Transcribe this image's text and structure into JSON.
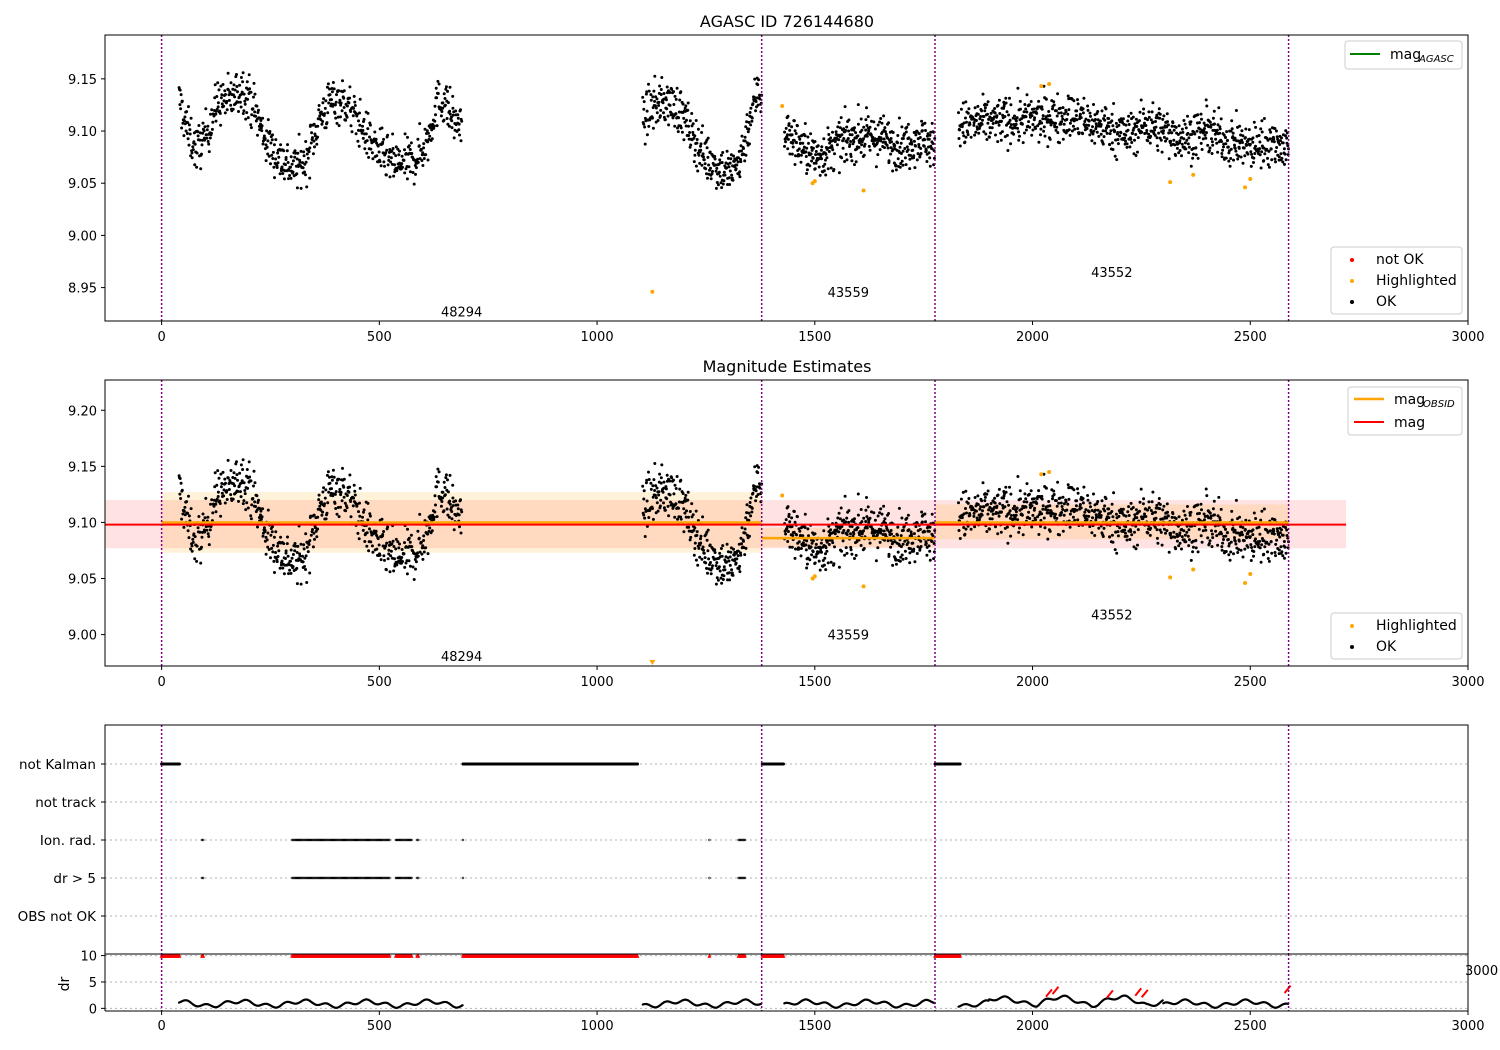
{
  "figure": {
    "panel1_title": "AGASC ID 726144680",
    "panel2_title": "Magnitude Estimates"
  },
  "chart_data": [
    {
      "type": "scatter",
      "title": "AGASC ID 726144680",
      "xlim": [
        -130,
        3000
      ],
      "ylim": [
        8.918,
        9.192
      ],
      "x_ticks": [
        0,
        500,
        1000,
        1500,
        2000,
        2500,
        3000
      ],
      "y_ticks": [
        8.95,
        9.0,
        9.05,
        9.1,
        9.15
      ],
      "y_tick_labels": [
        "8.95",
        "9.00",
        "9.05",
        "9.10",
        "9.15"
      ],
      "obsid_boundaries": [
        0,
        1378,
        1776,
        2588
      ],
      "obsid_labels": [
        {
          "text": "48294",
          "x": 689,
          "y": 8.927
        },
        {
          "text": "43559",
          "x": 1577,
          "y": 8.946
        },
        {
          "text": "43552",
          "x": 2182,
          "y": 8.965
        }
      ],
      "legend_lines": [
        {
          "label_main": "mag",
          "label_sub": "AGASC",
          "color": "#008000"
        }
      ],
      "legend_points": [
        {
          "label": "not OK",
          "color": "#ff0000"
        },
        {
          "label": "Highlighted",
          "color": "#ffa500"
        },
        {
          "label": "OK",
          "color": "#000000"
        }
      ],
      "highlighted": [
        [
          1127,
          8.946
        ],
        [
          1425,
          9.124
        ],
        [
          1495,
          9.05
        ],
        [
          1500,
          9.052
        ],
        [
          1612,
          9.043
        ],
        [
          2020,
          9.143
        ],
        [
          2038,
          9.145
        ],
        [
          2316,
          9.051
        ],
        [
          2369,
          9.058
        ],
        [
          2488,
          9.046
        ],
        [
          2500,
          9.054
        ]
      ],
      "ok_segments": [
        {
          "x0": 40,
          "x1": 690,
          "points_per": 2.2,
          "waypoints": [
            [
              40,
              9.13
            ],
            [
              60,
              9.1
            ],
            [
              80,
              9.082
            ],
            [
              100,
              9.095
            ],
            [
              130,
              9.128
            ],
            [
              160,
              9.13
            ],
            [
              185,
              9.142
            ],
            [
              210,
              9.125
            ],
            [
              240,
              9.09
            ],
            [
              270,
              9.075
            ],
            [
              300,
              9.065
            ],
            [
              330,
              9.07
            ],
            [
              360,
              9.11
            ],
            [
              390,
              9.13
            ],
            [
              420,
              9.128
            ],
            [
              450,
              9.11
            ],
            [
              480,
              9.09
            ],
            [
              510,
              9.075
            ],
            [
              540,
              9.068
            ],
            [
              580,
              9.072
            ],
            [
              610,
              9.09
            ],
            [
              630,
              9.125
            ],
            [
              650,
              9.13
            ],
            [
              670,
              9.11
            ],
            [
              690,
              9.105
            ]
          ]
        },
        {
          "x0": 1105,
          "x1": 1378,
          "points_per": 2.4,
          "waypoints": [
            [
              1105,
              9.11
            ],
            [
              1130,
              9.125
            ],
            [
              1160,
              9.128
            ],
            [
              1190,
              9.12
            ],
            [
              1220,
              9.095
            ],
            [
              1250,
              9.075
            ],
            [
              1280,
              9.065
            ],
            [
              1310,
              9.06
            ],
            [
              1330,
              9.075
            ],
            [
              1350,
              9.11
            ],
            [
              1370,
              9.14
            ],
            [
              1378,
              9.13
            ]
          ]
        },
        {
          "x0": 1430,
          "x1": 1776,
          "points_per": 2.6,
          "waypoints": [
            [
              1430,
              9.1
            ],
            [
              1470,
              9.085
            ],
            [
              1500,
              9.075
            ],
            [
              1530,
              9.08
            ],
            [
              1560,
              9.09
            ],
            [
              1600,
              9.095
            ],
            [
              1650,
              9.093
            ],
            [
              1700,
              9.085
            ],
            [
              1740,
              9.093
            ],
            [
              1776,
              9.085
            ]
          ]
        },
        {
          "x0": 1830,
          "x1": 2588,
          "points_per": 2.4,
          "waypoints": [
            [
              1830,
              9.105
            ],
            [
              1880,
              9.108
            ],
            [
              1930,
              9.11
            ],
            [
              1980,
              9.11
            ],
            [
              2030,
              9.112
            ],
            [
              2080,
              9.115
            ],
            [
              2130,
              9.108
            ],
            [
              2180,
              9.103
            ],
            [
              2220,
              9.095
            ],
            [
              2260,
              9.108
            ],
            [
              2300,
              9.1
            ],
            [
              2350,
              9.093
            ],
            [
              2400,
              9.1
            ],
            [
              2450,
              9.09
            ],
            [
              2500,
              9.085
            ],
            [
              2550,
              9.09
            ],
            [
              2588,
              9.083
            ]
          ]
        }
      ]
    },
    {
      "type": "scatter",
      "title": "Magnitude Estimates",
      "xlim": [
        -130,
        3000
      ],
      "ylim": [
        8.972,
        9.227
      ],
      "x_ticks": [
        0,
        500,
        1000,
        1500,
        2000,
        2500,
        3000
      ],
      "y_ticks": [
        9.0,
        9.05,
        9.1,
        9.15,
        9.2
      ],
      "y_tick_labels": [
        "9.00",
        "9.05",
        "9.10",
        "9.15",
        "9.20"
      ],
      "obsid_boundaries": [
        0,
        1378,
        1776,
        2588
      ],
      "obsid_labels": [
        {
          "text": "48294",
          "x": 689,
          "y": 8.981
        },
        {
          "text": "43559",
          "x": 1577,
          "y": 9.0
        },
        {
          "text": "43552",
          "x": 2182,
          "y": 9.018
        }
      ],
      "mag": {
        "value": 9.098,
        "band": [
          9.077,
          9.12
        ],
        "x_range": [
          -130,
          2720
        ],
        "color": "#ff0000"
      },
      "mag_obsid": [
        {
          "x0": 0,
          "x1": 1378,
          "value": 9.1,
          "band": [
            9.073,
            9.127
          ]
        },
        {
          "x0": 1378,
          "x1": 1776,
          "value": 9.086,
          "band": [
            9.078,
            9.095
          ]
        },
        {
          "x0": 1776,
          "x1": 2588,
          "value": 9.1,
          "band": [
            9.085,
            9.116
          ]
        }
      ],
      "legend_lines": [
        {
          "label_main": "mag",
          "label_sub": "OBSID",
          "color": "#ffa500"
        },
        {
          "label_main": "mag",
          "label_sub": "",
          "color": "#ff0000"
        }
      ],
      "legend_points": [
        {
          "label": "Highlighted",
          "color": "#ffa500"
        },
        {
          "label": "OK",
          "color": "#000000"
        }
      ]
    },
    {
      "type": "scatter",
      "xlim": [
        -130,
        3000
      ],
      "flag_rows": [
        "not Kalman",
        "not track",
        "Ion. rad.",
        "dr > 5",
        "OBS not OK"
      ],
      "flag_segments": {
        "not Kalman": [
          [
            0,
            42
          ],
          [
            692,
            1095
          ],
          [
            1380,
            1430
          ],
          [
            1776,
            1835
          ]
        ],
        "not track": [],
        "Ion. rad.": [
          [
            93,
            96
          ],
          [
            300,
            525
          ],
          [
            538,
            575
          ],
          [
            587,
            590
          ],
          [
            692,
            694
          ],
          [
            1258,
            1260
          ],
          [
            1325,
            1340
          ]
        ],
        "dr > 5": [
          [
            93,
            96
          ],
          [
            300,
            525
          ],
          [
            538,
            575
          ],
          [
            587,
            590
          ],
          [
            692,
            694
          ],
          [
            1258,
            1260
          ],
          [
            1325,
            1340
          ]
        ],
        "OBS not OK": []
      },
      "red_segments": [
        [
          0,
          42
        ],
        [
          93,
          96
        ],
        [
          300,
          525
        ],
        [
          538,
          575
        ],
        [
          587,
          590
        ],
        [
          692,
          1095
        ],
        [
          1258,
          1260
        ],
        [
          1325,
          1340
        ],
        [
          1380,
          1430
        ],
        [
          1776,
          1835
        ]
      ],
      "dr_panel": {
        "ylabel": "dr",
        "ylim": [
          -0.5,
          10.3
        ],
        "y_ticks": [
          0,
          5,
          10
        ],
        "clipped_x_label": "3000"
      },
      "dr_segments": [
        [
          40,
          692
        ],
        [
          1105,
          1378
        ],
        [
          1430,
          1776
        ],
        [
          1830,
          2588
        ]
      ],
      "dr_red_points": [
        [
          2040,
          2.9
        ],
        [
          2055,
          3.4
        ],
        [
          2180,
          2.7
        ],
        [
          2245,
          3.1
        ],
        [
          2260,
          2.8
        ],
        [
          2588,
          3.6
        ]
      ]
    }
  ]
}
